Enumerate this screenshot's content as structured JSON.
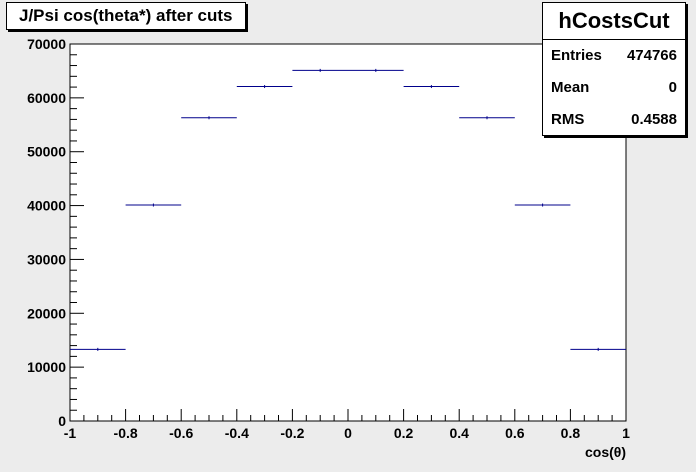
{
  "chart_data": {
    "type": "bar",
    "title": "J/Psi cos(theta*) after cuts",
    "xlabel": "cos(θ)",
    "ylabel": "",
    "xlim": [
      -1,
      1
    ],
    "ylim": [
      0,
      70000
    ],
    "xticks": [
      "-1",
      "-0.8",
      "-0.6",
      "-0.4",
      "-0.2",
      "0",
      "0.2",
      "0.4",
      "0.6",
      "0.8",
      "1"
    ],
    "yticks": [
      "0",
      "10000",
      "20000",
      "30000",
      "40000",
      "50000",
      "60000",
      "70000"
    ],
    "bins": [
      {
        "low": -1.0,
        "high": -0.8,
        "value": 13300
      },
      {
        "low": -0.8,
        "high": -0.6,
        "value": 40100
      },
      {
        "low": -0.6,
        "high": -0.4,
        "value": 56300
      },
      {
        "low": -0.4,
        "high": -0.2,
        "value": 62100
      },
      {
        "low": -0.2,
        "high": 0.0,
        "value": 65100
      },
      {
        "low": 0.0,
        "high": 0.2,
        "value": 65100
      },
      {
        "low": 0.2,
        "high": 0.4,
        "value": 62100
      },
      {
        "low": 0.4,
        "high": 0.6,
        "value": 56300
      },
      {
        "low": 0.6,
        "high": 0.8,
        "value": 40100
      },
      {
        "low": 0.8,
        "high": 1.0,
        "value": 13300
      }
    ],
    "line_color": "#00008b",
    "grid": false,
    "legend": "top-right"
  },
  "stats": {
    "name": "hCostsCut",
    "entries_label": "Entries",
    "entries_value": "474766",
    "mean_label": "Mean",
    "mean_value": "0",
    "rms_label": "RMS",
    "rms_value": "0.4588"
  }
}
